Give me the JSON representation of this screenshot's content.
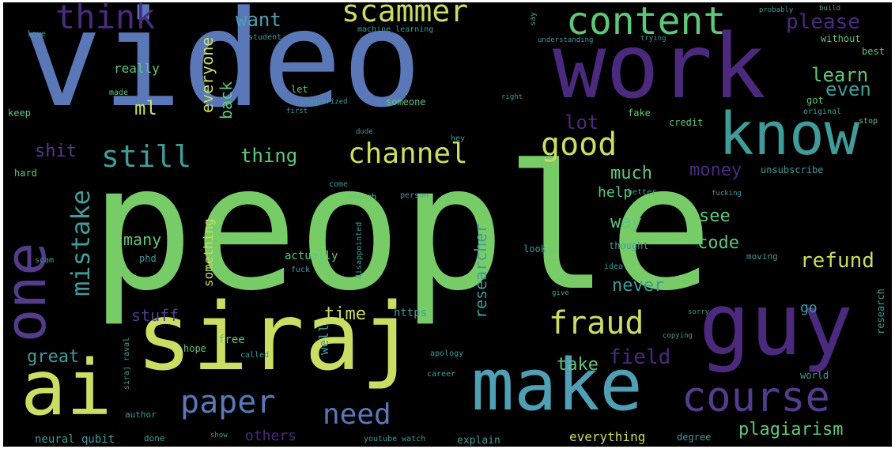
{
  "palette": {
    "blue": "#5a78b8",
    "green": "#78cc68",
    "purple": "#4b2a7e",
    "teal": "#3f9c9a",
    "yellow": "#c9de62",
    "lime": "#a8d85a",
    "cyan": "#4fa0b4",
    "lightgreen": "#5fc77a",
    "violet": "#553c8b"
  },
  "words": [
    {
      "text": "people",
      "color": "#78cc68"
    },
    {
      "text": "video",
      "color": "#5a78b8"
    },
    {
      "text": "work",
      "color": "#4b2a7e"
    },
    {
      "text": "siraj",
      "color": "#c9de62"
    },
    {
      "text": "guy",
      "color": "#4b2a7e"
    },
    {
      "text": "make",
      "color": "#4fa0b4"
    },
    {
      "text": "ai",
      "color": "#c9de62"
    },
    {
      "text": "one",
      "color": "#553c8b"
    },
    {
      "text": "know",
      "color": "#3f9c9a"
    },
    {
      "text": "course",
      "color": "#553c8b"
    },
    {
      "text": "content",
      "color": "#5fc77a"
    },
    {
      "text": "think",
      "color": "#4b2a7e"
    },
    {
      "text": "scammer",
      "color": "#c9de62"
    },
    {
      "text": "good",
      "color": "#c9de62"
    },
    {
      "text": "channel",
      "color": "#c9de62"
    },
    {
      "text": "still",
      "color": "#3f9c9a"
    },
    {
      "text": "fraud",
      "color": "#c9de62"
    },
    {
      "text": "paper",
      "color": "#5a78b8"
    },
    {
      "text": "need",
      "color": "#5a78b8"
    },
    {
      "text": "mistake",
      "color": "#3f9c9a"
    },
    {
      "text": "please",
      "color": "#4b2a7e"
    },
    {
      "text": "learn",
      "color": "#5fc77a"
    },
    {
      "text": "even",
      "color": "#3f9c9a"
    },
    {
      "text": "want",
      "color": "#4fa0b4"
    },
    {
      "text": "everyone",
      "color": "#c9de62"
    },
    {
      "text": "back",
      "color": "#5fc77a"
    },
    {
      "text": "ml",
      "color": "#c9de62"
    },
    {
      "text": "lot",
      "color": "#4b2a7e"
    },
    {
      "text": "thing",
      "color": "#5fc77a"
    },
    {
      "text": "shit",
      "color": "#553c8b"
    },
    {
      "text": "much",
      "color": "#5fc77a"
    },
    {
      "text": "money",
      "color": "#4b2a7e"
    },
    {
      "text": "way",
      "color": "#5fc77a"
    },
    {
      "text": "help",
      "color": "#5fc77a"
    },
    {
      "text": "see",
      "color": "#5fc77a"
    },
    {
      "text": "code",
      "color": "#5fc77a"
    },
    {
      "text": "refund",
      "color": "#c9de62"
    },
    {
      "text": "never",
      "color": "#3f9c9a"
    },
    {
      "text": "many",
      "color": "#5fc77a"
    },
    {
      "text": "researcher",
      "color": "#3f9c9a"
    },
    {
      "text": "something",
      "color": "#c9de62"
    },
    {
      "text": "time",
      "color": "#c9de62"
    },
    {
      "text": "stuff",
      "color": "#553c8b"
    },
    {
      "text": "great",
      "color": "#3f9c9a"
    },
    {
      "text": "field",
      "color": "#4b2a7e"
    },
    {
      "text": "take",
      "color": "#5fc77a"
    },
    {
      "text": "plagiarism",
      "color": "#5fc77a"
    },
    {
      "text": "others",
      "color": "#4b2a7e"
    },
    {
      "text": "everything",
      "color": "#c9de62"
    },
    {
      "text": "really",
      "color": "#5fc77a"
    },
    {
      "text": "machine learning",
      "color": "#3f9c9a"
    },
    {
      "text": "understanding",
      "color": "#3f9c9a"
    },
    {
      "text": "trying",
      "color": "#3f9c9a"
    },
    {
      "text": "student",
      "color": "#3f9c9a"
    },
    {
      "text": "without",
      "color": "#5fc77a"
    },
    {
      "text": "best",
      "color": "#5fc77a"
    },
    {
      "text": "love",
      "color": "#3f9c9a"
    },
    {
      "text": "made",
      "color": "#5fc77a"
    },
    {
      "text": "keep",
      "color": "#5fc77a"
    },
    {
      "text": "let",
      "color": "#5fc77a"
    },
    {
      "text": "plagiarized",
      "color": "#3f9c9a"
    },
    {
      "text": "someone",
      "color": "#5fc77a"
    },
    {
      "text": "got",
      "color": "#5fc77a"
    },
    {
      "text": "stop",
      "color": "#5fc77a"
    },
    {
      "text": "fake",
      "color": "#5fc77a"
    },
    {
      "text": "credit",
      "color": "#5fc77a"
    },
    {
      "text": "right",
      "color": "#3f9c9a"
    },
    {
      "text": "original",
      "color": "#3f9c9a"
    },
    {
      "text": "first",
      "color": "#3f9c9a"
    },
    {
      "text": "hey",
      "color": "#3f9c9a"
    },
    {
      "text": "dude",
      "color": "#3f9c9a"
    },
    {
      "text": "hard",
      "color": "#5fc77a"
    },
    {
      "text": "unsubscribe",
      "color": "#3f9c9a"
    },
    {
      "text": "fucking",
      "color": "#3f9c9a"
    },
    {
      "text": "better",
      "color": "#3f9c9a"
    },
    {
      "text": "person",
      "color": "#3f9c9a"
    },
    {
      "text": "enough",
      "color": "#5fc77a"
    },
    {
      "text": "come",
      "color": "#3f9c9a"
    },
    {
      "text": "disappointed",
      "color": "#3f9c9a"
    },
    {
      "text": "actually",
      "color": "#5fc77a"
    },
    {
      "text": "fuck",
      "color": "#3f9c9a"
    },
    {
      "text": "look",
      "color": "#3f9c9a"
    },
    {
      "text": "thought",
      "color": "#3f9c9a"
    },
    {
      "text": "idea",
      "color": "#3f9c9a"
    },
    {
      "text": "moving",
      "color": "#3f9c9a"
    },
    {
      "text": "give",
      "color": "#3f9c9a"
    },
    {
      "text": "go",
      "color": "#3f9c9a"
    },
    {
      "text": "research",
      "color": "#3f9c9a"
    },
    {
      "text": "sorry",
      "color": "#3f9c9a"
    },
    {
      "text": "free",
      "color": "#5fc77a"
    },
    {
      "text": "https",
      "color": "#3f9c9a"
    },
    {
      "text": "hope",
      "color": "#5fc77a"
    },
    {
      "text": "called",
      "color": "#3f9c9a"
    },
    {
      "text": "apology",
      "color": "#3f9c9a"
    },
    {
      "text": "copying",
      "color": "#3f9c9a"
    },
    {
      "text": "world",
      "color": "#3f9c9a"
    },
    {
      "text": "career",
      "color": "#3f9c9a"
    },
    {
      "text": "degree",
      "color": "#3f9c9a"
    },
    {
      "text": "phd",
      "color": "#3f9c9a"
    },
    {
      "text": "scam",
      "color": "#3f9c9a"
    },
    {
      "text": "author",
      "color": "#3f9c9a"
    },
    {
      "text": "neural qubit",
      "color": "#3f9c9a"
    },
    {
      "text": "done",
      "color": "#3f9c9a"
    },
    {
      "text": "show",
      "color": "#3f9c9a"
    },
    {
      "text": "youtube watch",
      "color": "#3f9c9a"
    },
    {
      "text": "explain",
      "color": "#3f9c9a"
    },
    {
      "text": "siraj raval",
      "color": "#3f9c9a"
    },
    {
      "text": "well",
      "color": "#3f9c9a"
    },
    {
      "text": "probably",
      "color": "#3f9c9a"
    },
    {
      "text": "say",
      "color": "#3f9c9a"
    },
    {
      "text": "build",
      "color": "#3f9c9a"
    }
  ]
}
